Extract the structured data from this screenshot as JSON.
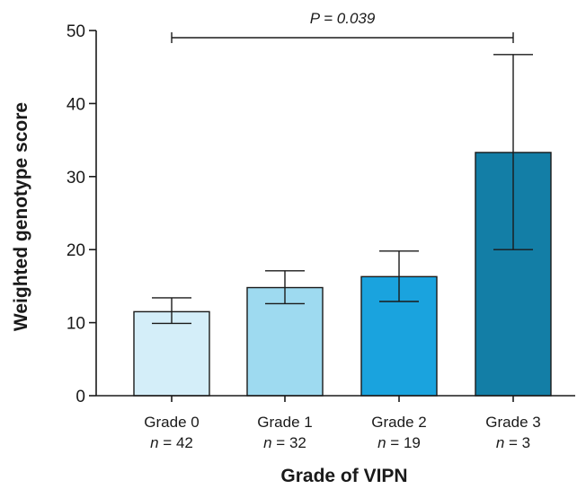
{
  "chart_data": {
    "type": "bar",
    "categories": [
      "Grade 0",
      "Grade 1",
      "Grade 2",
      "Grade 3"
    ],
    "sample_sizes": [
      "n = 42",
      "n = 32",
      "n = 19",
      "n = 3"
    ],
    "values": [
      11.5,
      14.8,
      16.3,
      33.3
    ],
    "error_low": [
      9.9,
      12.6,
      12.9,
      20.0
    ],
    "error_high": [
      13.4,
      17.1,
      19.8,
      46.7
    ],
    "bar_colors": [
      "#d4eef9",
      "#9edaf0",
      "#1aa3de",
      "#137ea6"
    ],
    "xlabel": "Grade of VIPN",
    "ylabel": "Weighted genotype score",
    "ylim": [
      0,
      50
    ],
    "yticks": [
      0,
      10,
      20,
      30,
      40,
      50
    ],
    "significance": {
      "from": "Grade 0",
      "to": "Grade 3",
      "label": "P = 0.039"
    },
    "grid": false,
    "legend": "none"
  }
}
